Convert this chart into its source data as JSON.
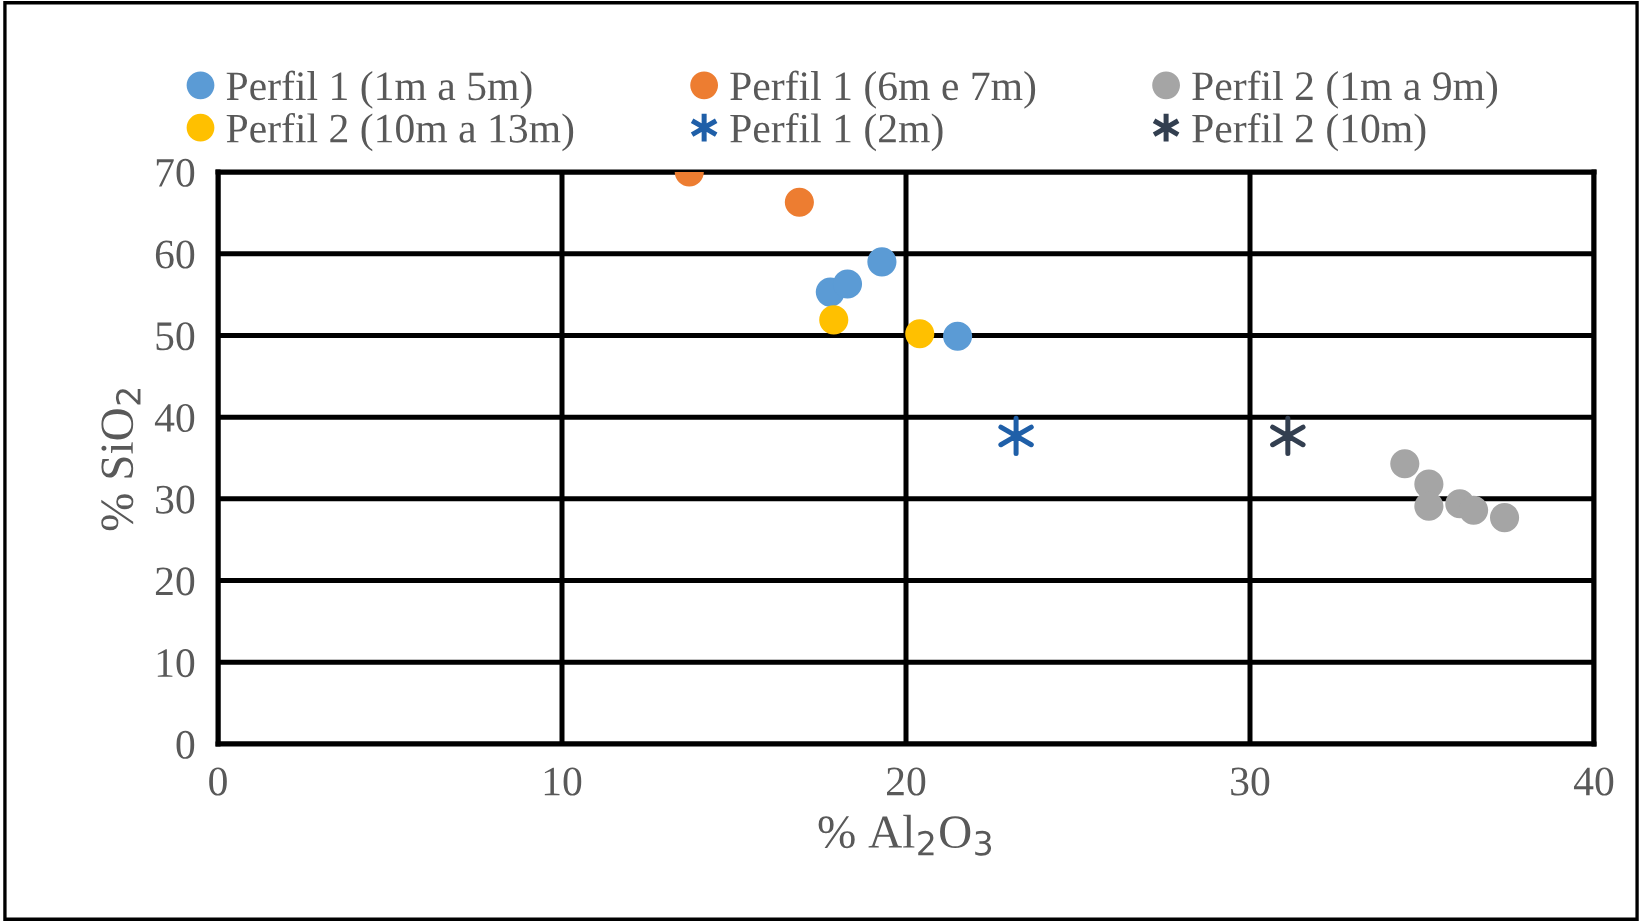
{
  "chart_data": {
    "type": "scatter",
    "xlabel": "% Al$_{2}$O$_{3}$",
    "ylabel": "% SiO$_{2}$",
    "xlim": [
      0,
      40
    ],
    "xticks": [
      0,
      10,
      20,
      30,
      40
    ],
    "ylim": [
      0,
      70
    ],
    "yticks": [
      0,
      10,
      20,
      30,
      40,
      50,
      60,
      70
    ],
    "grid": true,
    "legend": "top",
    "marker": "circle",
    "series": [
      {
        "name": "Perfil 1 (1m a 5m)",
        "color": "#5b9bd5",
        "x": [
          17.8,
          18.3,
          19.3,
          21.5
        ],
        "values": [
          55.3,
          56.3,
          59.0,
          49.9
        ]
      },
      {
        "name": "Perfil 1 (6m e 7m)",
        "color": "#ed7d31",
        "x": [
          13.7,
          16.9
        ],
        "values": [
          70.0,
          66.3
        ]
      },
      {
        "name": "Perfil 2 (1m a 9m)",
        "color": "#a5a5a5",
        "x": [
          34.5,
          35.2,
          35.2,
          36.1,
          36.5,
          37.4
        ],
        "values": [
          34.3,
          31.8,
          29.1,
          29.4,
          28.6,
          27.7
        ]
      },
      {
        "name": "Perfil 2 (10m a 13m)",
        "color": "#ffc000",
        "x": [
          17.9,
          20.4
        ],
        "values": [
          51.9,
          50.2
        ]
      },
      {
        "name": "Perfil 1 (2m)",
        "color": "#1f5fa8",
        "marker": "cross",
        "x": [
          23.2
        ],
        "values": [
          37.7
        ]
      },
      {
        "name": "Perfil 2 (10m)",
        "color": "#333f50",
        "marker": "cross",
        "x": [
          31.1
        ],
        "values": [
          37.7
        ]
      }
    ]
  }
}
